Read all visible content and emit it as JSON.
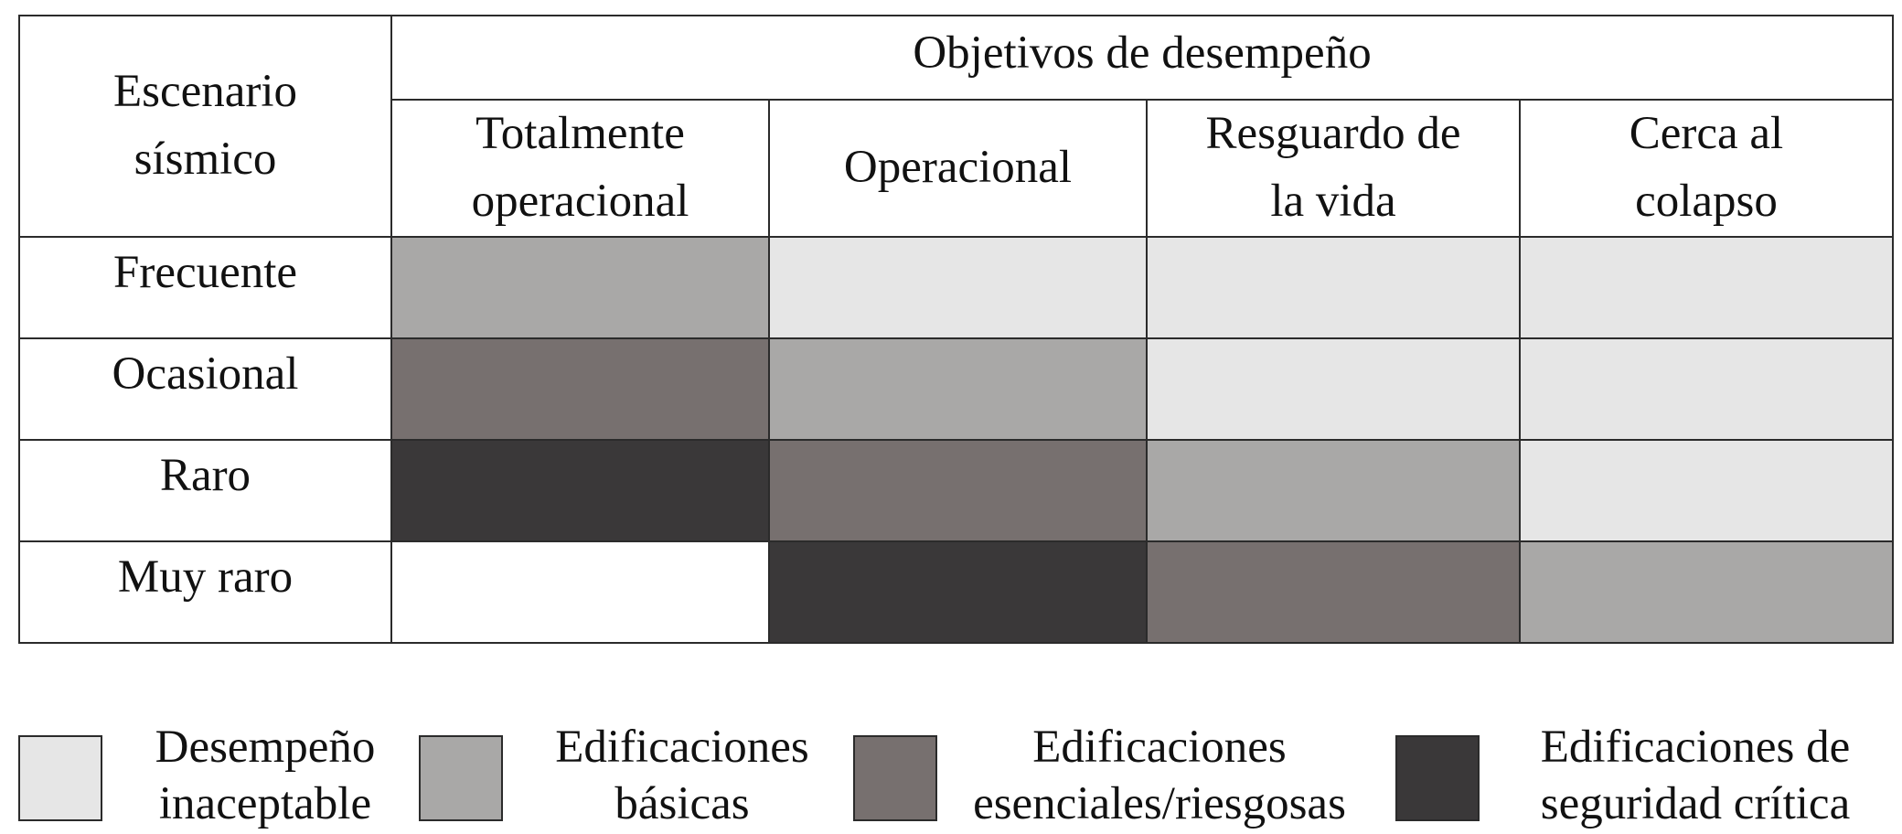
{
  "table": {
    "corner_label": [
      "Escenario",
      "sísmico"
    ],
    "group_header": "Objetivos de desempeño",
    "columns": [
      [
        "Totalmente",
        "operacional"
      ],
      [
        "Operacional"
      ],
      [
        "Resguardo de",
        "la vida"
      ],
      [
        "Cerca al",
        "colapso"
      ]
    ],
    "rows": [
      {
        "label": "Frecuente",
        "cells": [
          "basicas",
          "inaceptable",
          "inaceptable",
          "inaceptable"
        ]
      },
      {
        "label": "Ocasional",
        "cells": [
          "esenciales",
          "basicas",
          "inaceptable",
          "inaceptable"
        ]
      },
      {
        "label": "Raro",
        "cells": [
          "critica",
          "esenciales",
          "basicas",
          "inaceptable"
        ]
      },
      {
        "label": "Muy raro",
        "cells": [
          "none",
          "critica",
          "esenciales",
          "basicas"
        ]
      }
    ]
  },
  "colors": {
    "inaceptable": "#e6e6e6",
    "basicas": "#a9a8a7",
    "esenciales": "#77706f",
    "critica": "#3a3839",
    "none": "#ffffff"
  },
  "legend": [
    {
      "key": "inaceptable",
      "lines": [
        "Desempeño",
        "inaceptable"
      ]
    },
    {
      "key": "basicas",
      "lines": [
        "Edificaciones",
        "básicas"
      ]
    },
    {
      "key": "esenciales",
      "lines": [
        "Edificaciones",
        "esenciales/riesgosas"
      ]
    },
    {
      "key": "critica",
      "lines": [
        "Edificaciones de",
        "seguridad crítica"
      ]
    }
  ]
}
